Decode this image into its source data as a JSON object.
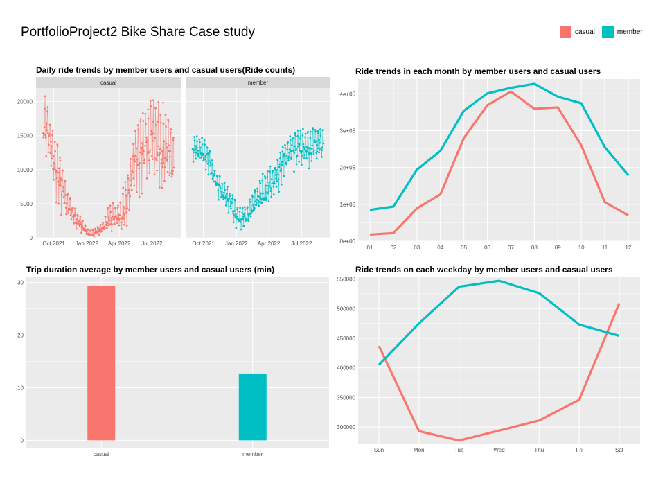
{
  "title": "PortfolioProject2 Bike Share Case study",
  "legend": [
    {
      "label": "casual",
      "color": "#F8766D"
    },
    {
      "label": "member",
      "color": "#00BFC4"
    }
  ],
  "colors": {
    "casual": "#F8766D",
    "member": "#00BFC4",
    "panel_bg": "#EBEBEB",
    "grid": "#ffffff",
    "strip_bg": "#D9D9D9"
  },
  "panels": {
    "daily": {
      "title": "Daily ride trends by member users and casual users(Ride counts)"
    },
    "monthly": {
      "title": "Ride trends in each month by member users and casual users"
    },
    "duration": {
      "title": "Trip duration average by member users and casual users (min)"
    },
    "weekday": {
      "title": "Ride trends on each weekday by member users and casual users"
    }
  },
  "chart_data": [
    {
      "type": "line",
      "title": "Daily ride trends by member users and casual users(Ride counts)",
      "facets": [
        "casual",
        "member"
      ],
      "x_ticks": [
        "Oct 2021",
        "Jan 2022",
        "Apr 2022",
        "Jul 2022"
      ],
      "y_ticks": [
        "0",
        "5000",
        "10000",
        "15000",
        "20000"
      ],
      "ylim": [
        0,
        22000
      ],
      "x_range": [
        "2021-09-01",
        "2022-08-31"
      ],
      "series": [
        {
          "name": "casual",
          "x": [
            "2021-09-01",
            "2021-09-16",
            "2021-10-01",
            "2021-10-16",
            "2021-11-01",
            "2021-11-16",
            "2021-12-01",
            "2021-12-16",
            "2022-01-01",
            "2022-01-16",
            "2022-02-01",
            "2022-02-16",
            "2022-03-01",
            "2022-03-16",
            "2022-04-01",
            "2022-04-16",
            "2022-05-01",
            "2022-05-16",
            "2022-06-01",
            "2022-06-16",
            "2022-07-01",
            "2022-07-16",
            "2022-08-01",
            "2022-08-16",
            "2022-08-31"
          ],
          "y": [
            16000,
            14500,
            11000,
            9000,
            5500,
            3800,
            2600,
            1800,
            700,
            600,
            900,
            1300,
            2200,
            2800,
            2800,
            3800,
            7500,
            11000,
            12500,
            13000,
            13500,
            12500,
            12500,
            11500,
            10500
          ],
          "y_low": [
            10000,
            8500,
            6000,
            4000,
            2000,
            1500,
            1000,
            600,
            200,
            150,
            300,
            400,
            700,
            900,
            900,
            1200,
            2500,
            4500,
            6000,
            6500,
            7000,
            6500,
            6000,
            6000,
            5500
          ],
          "y_high": [
            21500,
            20000,
            15500,
            13000,
            8500,
            6000,
            4200,
            3200,
            1500,
            1300,
            1800,
            2500,
            4500,
            5500,
            6000,
            8000,
            12500,
            16000,
            18500,
            20500,
            20500,
            20000,
            20000,
            18500,
            17000
          ]
        },
        {
          "name": "member",
          "x": [
            "2021-09-01",
            "2021-09-16",
            "2021-10-01",
            "2021-10-16",
            "2021-11-01",
            "2021-11-16",
            "2021-12-01",
            "2021-12-16",
            "2022-01-01",
            "2022-01-16",
            "2022-02-01",
            "2022-02-16",
            "2022-03-01",
            "2022-03-16",
            "2022-04-01",
            "2022-04-16",
            "2022-05-01",
            "2022-05-16",
            "2022-06-01",
            "2022-06-16",
            "2022-07-01",
            "2022-07-16",
            "2022-08-01",
            "2022-08-16",
            "2022-08-31"
          ],
          "y": [
            13000,
            12800,
            12200,
            11500,
            8500,
            7000,
            6000,
            5000,
            3200,
            2700,
            3200,
            4000,
            5200,
            6200,
            7200,
            8200,
            10000,
            11500,
            12500,
            12800,
            13000,
            13200,
            13200,
            13500,
            13800
          ],
          "y_low": [
            11000,
            10500,
            9500,
            8500,
            6000,
            4500,
            4000,
            3000,
            1200,
            1000,
            1500,
            2200,
            3200,
            3800,
            4500,
            5200,
            6500,
            8000,
            9000,
            9500,
            10000,
            10000,
            10500,
            11000,
            11000
          ],
          "y_high": [
            15500,
            15300,
            14500,
            13800,
            10500,
            9000,
            8000,
            7000,
            5200,
            4500,
            5200,
            6500,
            8200,
            9500,
            10500,
            11500,
            13000,
            14500,
            15500,
            15800,
            16000,
            16000,
            16200,
            16200,
            16500
          ]
        }
      ]
    },
    {
      "type": "line",
      "title": "Ride trends in each month by member users and casual users",
      "categories": [
        "01",
        "02",
        "03",
        "04",
        "05",
        "06",
        "07",
        "08",
        "09",
        "10",
        "11",
        "12"
      ],
      "y_ticks": [
        "0e+00",
        "1e+05",
        "2e+05",
        "3e+05",
        "4e+05"
      ],
      "ylim": [
        0,
        440000
      ],
      "series": [
        {
          "name": "casual",
          "values": [
            18000,
            22000,
            89000,
            127000,
            280000,
            369000,
            406000,
            359000,
            363000,
            260000,
            106000,
            70000
          ]
        },
        {
          "name": "member",
          "values": [
            85000,
            94000,
            194000,
            245000,
            354000,
            401000,
            416000,
            427000,
            392000,
            374000,
            255000,
            179000
          ]
        }
      ]
    },
    {
      "type": "bar",
      "title": "Trip duration average by member users and casual users (min)",
      "categories": [
        "casual",
        "member"
      ],
      "values": [
        29.3,
        12.7
      ],
      "y_ticks": [
        "0",
        "10",
        "20",
        "30"
      ],
      "ylim": [
        -1.4,
        31
      ]
    },
    {
      "type": "line",
      "title": "Ride trends on each weekday by member users and casual users",
      "categories": [
        "Sun",
        "Mon",
        "Tue",
        "Wed",
        "Thu",
        "Fri",
        "Sat"
      ],
      "y_ticks": [
        "300000",
        "350000",
        "400000",
        "450000",
        "500000",
        "550000"
      ],
      "ylim": [
        272000,
        553000
      ],
      "series": [
        {
          "name": "casual",
          "values": [
            437000,
            293000,
            277000,
            294000,
            311000,
            346000,
            509000
          ]
        },
        {
          "name": "member",
          "values": [
            405000,
            475000,
            537000,
            547000,
            526000,
            473000,
            454000
          ]
        }
      ]
    }
  ]
}
